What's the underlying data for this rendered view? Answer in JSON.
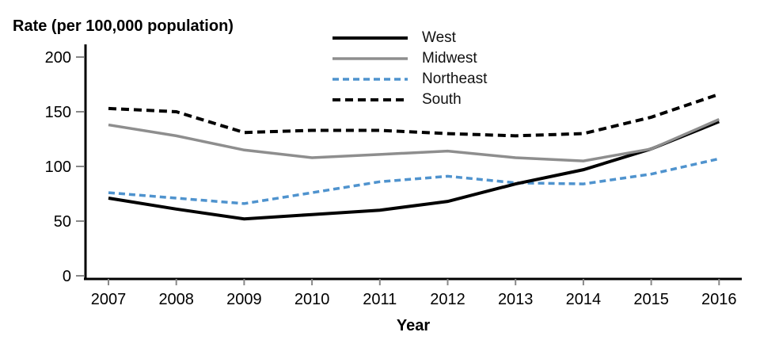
{
  "chart_data": {
    "type": "line",
    "title": "",
    "ylabel": "Rate (per 100,000 population)",
    "xlabel": "Year",
    "x": [
      2007,
      2008,
      2009,
      2010,
      2011,
      2012,
      2013,
      2014,
      2015,
      2016
    ],
    "ylim": [
      0,
      200
    ],
    "yticks": [
      0,
      50,
      100,
      150,
      200
    ],
    "grid": false,
    "legend_position": "top-center",
    "axis_color": "#000000",
    "tick_color": "#888888",
    "series": [
      {
        "name": "West",
        "color": "#000000",
        "line_style": "solid",
        "dash": "",
        "width": 4,
        "values": [
          71,
          61,
          52,
          56,
          60,
          68,
          84,
          97,
          116,
          141
        ]
      },
      {
        "name": "Midwest",
        "color": "#8E8E8E",
        "line_style": "solid",
        "dash": "",
        "width": 3.5,
        "values": [
          138,
          128,
          115,
          108,
          111,
          114,
          108,
          105,
          116,
          143
        ]
      },
      {
        "name": "Northeast",
        "color": "#4F93CE",
        "line_style": "dashed",
        "dash": "8 5",
        "width": 3.5,
        "values": [
          76,
          71,
          66,
          76,
          86,
          91,
          85,
          84,
          93,
          107
        ]
      },
      {
        "name": "South",
        "color": "#000000",
        "line_style": "dashed",
        "dash": "10 6",
        "width": 4,
        "values": [
          153,
          150,
          131,
          133,
          133,
          130,
          128,
          130,
          145,
          166
        ]
      }
    ]
  }
}
